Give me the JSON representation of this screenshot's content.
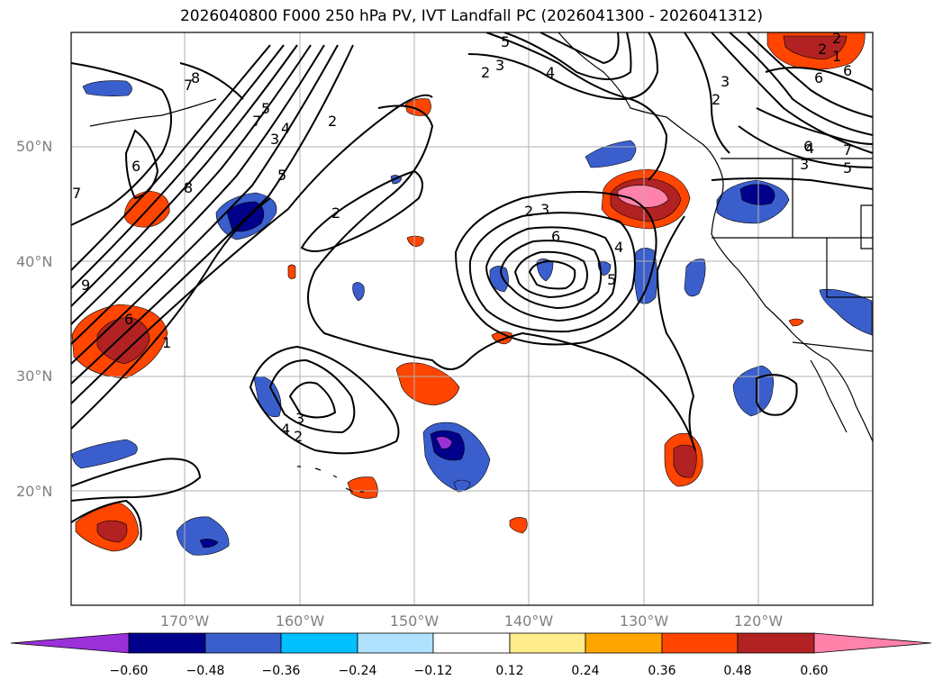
{
  "title": "2026040800 F000 250 hPa PV, IVT Landfall PC (2026041300 - 2026041312)",
  "latitude_labels": [
    "50°N",
    "40°N",
    "30°N",
    "20°N"
  ],
  "longitude_labels": [
    "170°W",
    "160°W",
    "150°W",
    "140°W",
    "130°W",
    "120°W"
  ],
  "colorbar": {
    "ticks": [
      "−0.60",
      "−0.48",
      "−0.36",
      "−0.24",
      "−0.12",
      "0.12",
      "0.24",
      "0.36",
      "0.48",
      "0.60"
    ],
    "colors": [
      "#9b30d8",
      "#00008b",
      "#3a5fcd",
      "#00bfff",
      "#b0e2ff",
      "#ffffff",
      "#ffec8b",
      "#ffa500",
      "#ff4500",
      "#b22222",
      "#ff82ab"
    ]
  },
  "contour_labels": [
    "2",
    "3",
    "4",
    "5",
    "6",
    "7",
    "8",
    "9",
    "1",
    "2",
    "3",
    "4",
    "5",
    "6",
    "7",
    "2",
    "3",
    "4",
    "5",
    "6",
    "7",
    "2",
    "3",
    "2",
    "3",
    "4",
    "5",
    "6",
    "1",
    "2",
    "2",
    "3",
    "4",
    "6",
    "7",
    "5",
    "2",
    "6",
    "8"
  ],
  "colors": {
    "grid": "#b0b0b0",
    "contour": "#000000",
    "axis_label": "#808080"
  }
}
